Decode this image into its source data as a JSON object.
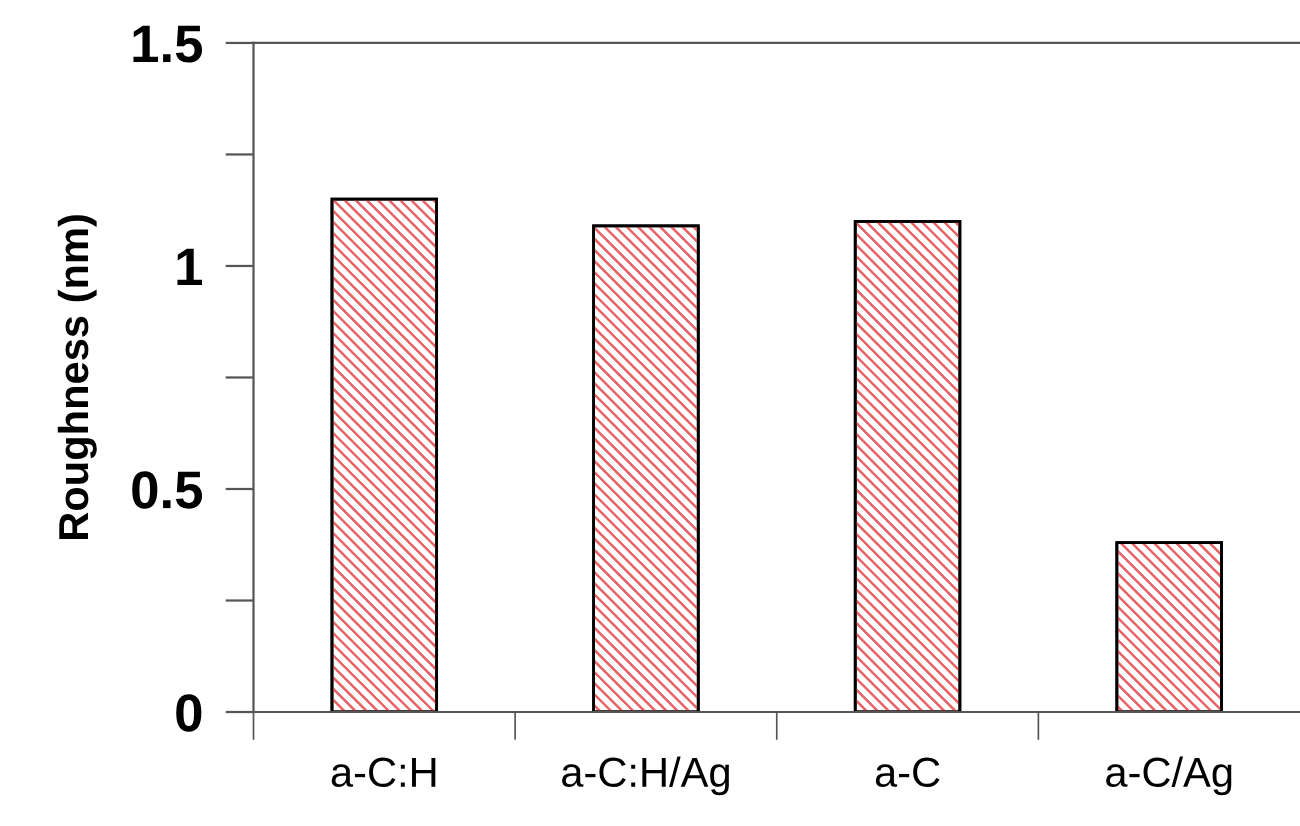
{
  "chart_data": {
    "type": "bar",
    "ylabel": "Roughness (nm)",
    "categories": [
      "a-C:H",
      "a-C:H/Ag",
      "a-C",
      "a-C/Ag"
    ],
    "values": [
      1.15,
      1.09,
      1.1,
      0.38
    ],
    "color": "#e8666a",
    "ylim": [
      0,
      1.5
    ],
    "yticks": [
      0,
      {
        "value": 0.25,
        "label": null
      },
      0.5,
      {
        "value": 0.75,
        "label": null
      },
      1,
      {
        "value": 1.25,
        "label": null
      },
      1.5
    ],
    "grid": false
  }
}
